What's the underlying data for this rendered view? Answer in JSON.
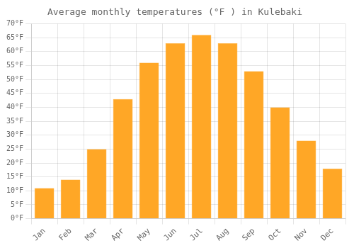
{
  "chart_data": {
    "type": "bar",
    "title": "Average monthly temperatures (°F ) in Kulebaki",
    "categories": [
      "Jan",
      "Feb",
      "Mar",
      "Apr",
      "May",
      "Jun",
      "Jul",
      "Aug",
      "Sep",
      "Oct",
      "Nov",
      "Dec"
    ],
    "values": [
      11,
      14,
      25,
      43,
      56,
      63,
      66,
      63,
      53,
      40,
      28,
      18
    ],
    "color": "#FFA726",
    "ylim": [
      0,
      70
    ],
    "yticks": [
      {
        "value": 0,
        "label": "0°F"
      },
      {
        "value": 5,
        "label": "5°F"
      },
      {
        "value": 10,
        "label": "10°F"
      },
      {
        "value": 15,
        "label": "15°F"
      },
      {
        "value": 20,
        "label": "20°F"
      },
      {
        "value": 25,
        "label": "25°F"
      },
      {
        "value": 30,
        "label": "30°F"
      },
      {
        "value": 35,
        "label": "35°F"
      },
      {
        "value": 40,
        "label": "40°F"
      },
      {
        "value": 45,
        "label": "45°F"
      },
      {
        "value": 50,
        "label": "50°F"
      },
      {
        "value": 55,
        "label": "55°F"
      },
      {
        "value": 60,
        "label": "60°F"
      },
      {
        "value": 65,
        "label": "65°F"
      },
      {
        "value": 70,
        "label": "70°F"
      }
    ],
    "grid": true
  }
}
